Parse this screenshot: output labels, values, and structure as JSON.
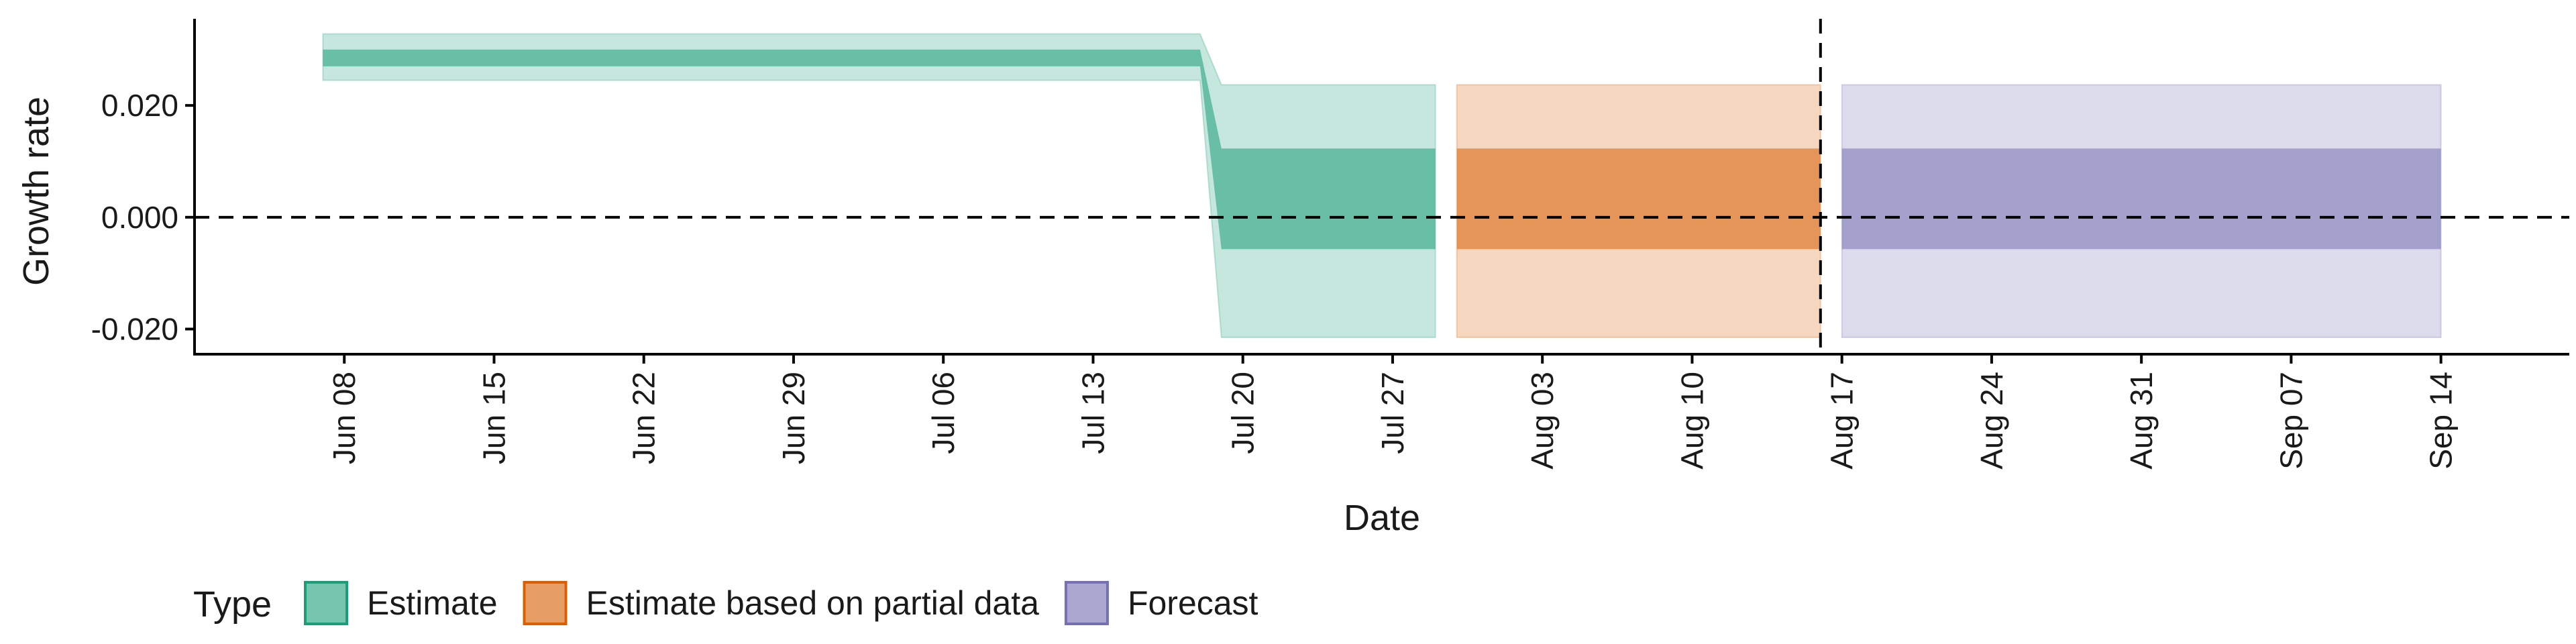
{
  "chart_data": {
    "type": "area",
    "xlabel": "Date",
    "ylabel": "Growth rate",
    "x_tick_labels": [
      "Jun 08",
      "Jun 15",
      "Jun 22",
      "Jun 29",
      "Jul 06",
      "Jul 13",
      "Jul 20",
      "Jul 27",
      "Aug 03",
      "Aug 10",
      "Aug 17",
      "Aug 24",
      "Aug 31",
      "Sep 07",
      "Sep 14"
    ],
    "y_tick_labels": [
      "-0.020",
      "0.000",
      "0.020"
    ],
    "y_ticks": [
      -0.02,
      0.0,
      0.02
    ],
    "ylim": [
      -0.0245,
      0.0355
    ],
    "xlim": [
      "2020-06-01",
      "2020-09-20"
    ],
    "reference_lines": [
      {
        "axis": "y",
        "value": 0,
        "style": "dashed"
      },
      {
        "axis": "x",
        "value": "2020-08-16",
        "style": "dashed"
      }
    ],
    "legend": {
      "title": "Type",
      "placement": "bottom",
      "entries": [
        "Estimate",
        "Estimate based on partial data",
        "Forecast"
      ]
    },
    "series": [
      {
        "name": "Estimate",
        "color": "#1b9e77",
        "x": [
          "2020-06-07",
          "2020-07-18",
          "2020-07-19",
          "2020-07-29"
        ],
        "lower_90": [
          0.0245,
          0.0245,
          -0.0215,
          -0.0215
        ],
        "lower_50": [
          0.027,
          0.027,
          -0.0057,
          -0.0057
        ],
        "upper_50": [
          0.03,
          0.03,
          0.0123,
          0.0123
        ],
        "upper_90": [
          0.0328,
          0.0328,
          0.0237,
          0.0237
        ]
      },
      {
        "name": "Estimate based on partial data",
        "color": "#d95f02",
        "x": [
          "2020-07-30",
          "2020-08-16"
        ],
        "lower_90": [
          -0.0215,
          -0.0215
        ],
        "lower_50": [
          -0.0057,
          -0.0057
        ],
        "upper_50": [
          0.0123,
          0.0123
        ],
        "upper_90": [
          0.0237,
          0.0237
        ]
      },
      {
        "name": "Forecast",
        "color": "#7570b3",
        "x": [
          "2020-08-17",
          "2020-09-14"
        ],
        "lower_90": [
          -0.0215,
          -0.0215
        ],
        "lower_50": [
          -0.0057,
          -0.0057
        ],
        "upper_50": [
          0.0123,
          0.0123
        ],
        "upper_90": [
          0.0237,
          0.0237
        ]
      }
    ]
  }
}
